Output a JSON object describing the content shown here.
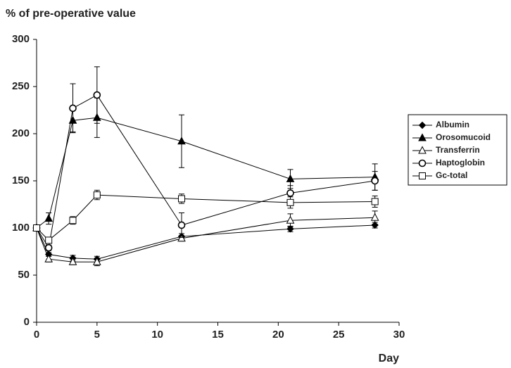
{
  "chart_data": {
    "type": "line",
    "y_label": "% of pre-operative value",
    "x_label": "Day",
    "x": [
      0,
      1,
      3,
      5,
      12,
      21,
      28
    ],
    "xlim": [
      0,
      30
    ],
    "xticks": [
      0,
      5,
      10,
      15,
      20,
      25,
      30
    ],
    "ylim": [
      0,
      300
    ],
    "yticks": [
      0,
      50,
      100,
      150,
      200,
      250,
      300
    ],
    "grid": false,
    "legend": "right",
    "series": [
      {
        "name": "Albumin",
        "color": "#000000",
        "marker": "diamond",
        "values": [
          100,
          72,
          68,
          67,
          91,
          99,
          103
        ],
        "errors": [
          null,
          2,
          3,
          3,
          3,
          3,
          3
        ]
      },
      {
        "name": "Orosomucoid",
        "color": "#000000",
        "marker": "triangle-filled",
        "values": [
          100,
          110,
          214,
          217,
          192,
          152,
          154
        ],
        "errors": [
          null,
          6,
          12,
          21,
          28,
          10,
          14
        ]
      },
      {
        "name": "Transferrin",
        "color": "#000000",
        "marker": "triangle-open",
        "values": [
          100,
          67,
          64,
          64,
          89,
          108,
          111
        ],
        "errors": [
          null,
          3,
          3,
          4,
          3,
          7,
          7
        ]
      },
      {
        "name": "Haptoglobin",
        "color": "#000000",
        "marker": "circle-open",
        "values": [
          100,
          79,
          227,
          241,
          103,
          137,
          150
        ],
        "errors": [
          null,
          3,
          26,
          30,
          13,
          8,
          10
        ]
      },
      {
        "name": "Gc-total",
        "color": "#000000",
        "marker": "square-open",
        "values": [
          100,
          87,
          108,
          135,
          131,
          127,
          128
        ],
        "errors": [
          null,
          3,
          4,
          5,
          5,
          6,
          6
        ]
      }
    ]
  }
}
